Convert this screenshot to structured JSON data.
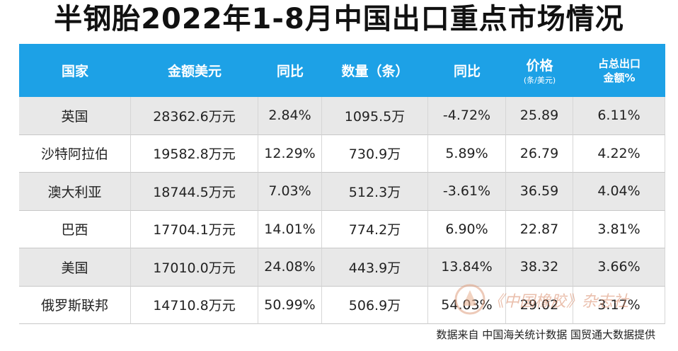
{
  "title": "半钢胎2022年1-8月中国出口重点市场情况",
  "table": {
    "columns": [
      {
        "lines": [
          "国家"
        ]
      },
      {
        "lines": [
          "金额美元"
        ]
      },
      {
        "lines": [
          "同比"
        ]
      },
      {
        "lines": [
          "数量（条）"
        ]
      },
      {
        "lines": [
          "同比"
        ]
      },
      {
        "lines": [
          "价格"
        ],
        "sub": "(条/美元)"
      },
      {
        "lines": [
          "占总出口",
          "金额%"
        ]
      }
    ],
    "rows": [
      [
        "英国",
        "28362.6万元",
        "2.84%",
        "1095.5万",
        "-4.72%",
        "25.89",
        "6.11%"
      ],
      [
        "沙特阿拉伯",
        "19582.8万元",
        "12.29%",
        "730.9万",
        "5.89%",
        "26.79",
        "4.22%"
      ],
      [
        "澳大利亚",
        "18744.5万元",
        "7.03%",
        "512.3万",
        "-3.61%",
        "36.59",
        "4.04%"
      ],
      [
        "巴西",
        "17704.1万元",
        "14.01%",
        "774.2万",
        "6.90%",
        "22.87",
        "3.81%"
      ],
      [
        "美国",
        "17010.0万元",
        "24.08%",
        "443.9万",
        "13.84%",
        "38.32",
        "3.66%"
      ],
      [
        "俄罗斯联邦",
        "14710.8万元",
        "50.99%",
        "506.9万",
        "54.03%",
        "29.02",
        "3.17%"
      ]
    ]
  },
  "source": "数据来自 中国海关统计数据 国贸通大数据提供",
  "watermark": "《中国橡胶》杂志社"
}
